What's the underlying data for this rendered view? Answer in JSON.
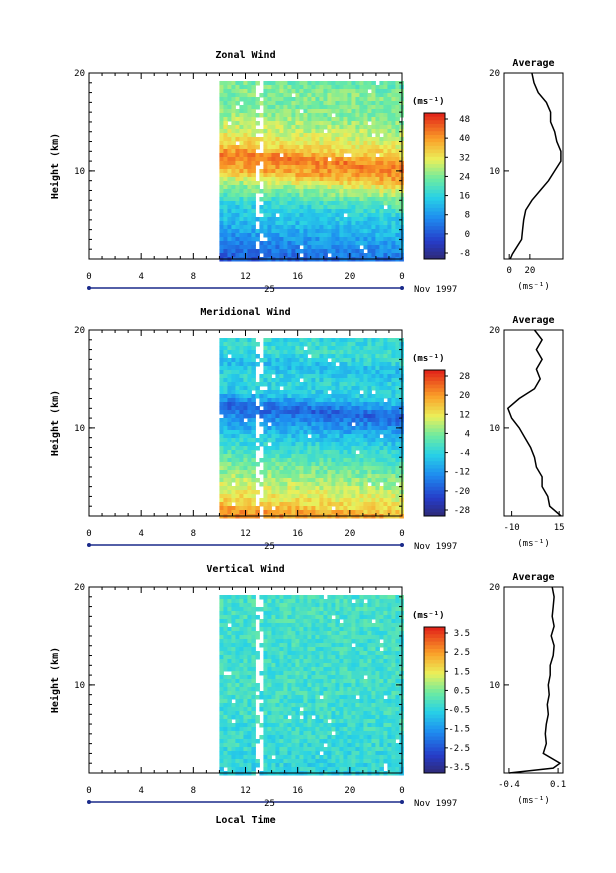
{
  "figure": {
    "date_label": "Nov 1997",
    "day_label": "25",
    "xlabel": "Local Time",
    "ylabel": "Height (km)",
    "avg_title": "Average",
    "unit": "(ms⁻¹)"
  },
  "chart_data": [
    {
      "type": "heatmap",
      "title": "Zonal Wind",
      "xlabel": "Local Time",
      "ylabel": "Height (km)",
      "xlim": [
        0,
        24
      ],
      "ylim": [
        1,
        20
      ],
      "xticks": [
        "0",
        "4",
        "8",
        "12",
        "16",
        "20",
        "0"
      ],
      "yticks": [
        10,
        20
      ],
      "data_start_hour": 10,
      "colorbar": {
        "unit": "(ms⁻¹)",
        "ticks": [
          "48",
          "40",
          "32",
          "24",
          "16",
          "8",
          "0",
          "-8"
        ],
        "min": -8,
        "max": 52
      },
      "field": {
        "profile": [
          [
            1,
            2
          ],
          [
            3,
            8
          ],
          [
            5,
            14
          ],
          [
            7,
            18
          ],
          [
            9,
            28
          ],
          [
            10.5,
            40
          ],
          [
            12,
            44
          ],
          [
            13,
            36
          ],
          [
            15,
            30
          ],
          [
            17,
            26
          ],
          [
            19,
            26
          ],
          [
            20,
            24
          ]
        ],
        "trend": 0.35
      },
      "average": {
        "xticks": [
          "0",
          "20"
        ],
        "xlim": [
          -5,
          52
        ],
        "height": [
          1,
          1.5,
          2,
          3,
          4,
          5,
          6,
          7,
          8,
          9,
          10,
          11,
          12,
          13,
          14,
          15,
          16,
          17,
          18,
          19,
          20
        ],
        "values": [
          1,
          3,
          6,
          12,
          13,
          14,
          16,
          22,
          30,
          38,
          44,
          50,
          50,
          46,
          44,
          40,
          40,
          36,
          28,
          24,
          22
        ]
      }
    },
    {
      "type": "heatmap",
      "title": "Meridional Wind",
      "xlabel": "Local Time",
      "ylabel": "Height (km)",
      "xlim": [
        0,
        24
      ],
      "ylim": [
        1,
        20
      ],
      "xticks": [
        "0",
        "4",
        "8",
        "12",
        "16",
        "20",
        "0"
      ],
      "yticks": [
        10,
        20
      ],
      "data_start_hour": 10,
      "colorbar": {
        "unit": "(ms⁻¹)",
        "ticks": [
          "28",
          "20",
          "12",
          "4",
          "-4",
          "-12",
          "-20",
          "-28"
        ],
        "min": -32,
        "max": 32
      },
      "field": {
        "profile": [
          [
            1,
            22
          ],
          [
            2,
            20
          ],
          [
            3,
            14
          ],
          [
            5,
            8
          ],
          [
            7,
            2
          ],
          [
            9,
            -4
          ],
          [
            11,
            -12
          ],
          [
            12.5,
            -20
          ],
          [
            14,
            -6
          ],
          [
            15.5,
            -4
          ],
          [
            17,
            -8
          ],
          [
            18.5,
            -2
          ],
          [
            20,
            -4
          ]
        ],
        "trend": 0.3
      },
      "average": {
        "xticks": [
          "-10",
          "15"
        ],
        "xlim": [
          -14,
          17
        ],
        "height": [
          1,
          2,
          3,
          4,
          5,
          6,
          7,
          8,
          9,
          10,
          11,
          12,
          13,
          14,
          15,
          16,
          17,
          18,
          19,
          20
        ],
        "values": [
          16,
          10,
          9,
          6,
          6,
          3,
          2,
          0,
          -3,
          -6,
          -10,
          -12,
          -6,
          2,
          5,
          3,
          6,
          3,
          6,
          2
        ]
      }
    },
    {
      "type": "heatmap",
      "title": "Vertical Wind",
      "xlabel": "Local Time",
      "ylabel": "Height (km)",
      "xlim": [
        0,
        24
      ],
      "ylim": [
        1,
        20
      ],
      "xticks": [
        "0",
        "4",
        "8",
        "12",
        "16",
        "20",
        "0"
      ],
      "yticks": [
        10,
        20
      ],
      "data_start_hour": 10,
      "colorbar": {
        "unit": "(ms⁻¹)",
        "ticks": [
          "3.5",
          "2.5",
          "1.5",
          "0.5",
          "-0.5",
          "-1.5",
          "-2.5",
          "-3.5"
        ],
        "min": -4,
        "max": 4
      },
      "field": {
        "profile": [
          [
            1,
            -0.6
          ],
          [
            3,
            -0.4
          ],
          [
            6,
            -0.3
          ],
          [
            10,
            -0.2
          ],
          [
            15,
            -0.2
          ],
          [
            20,
            -0.1
          ]
        ],
        "trend": 0.0
      },
      "average": {
        "xticks": [
          "-0.4",
          "0.1"
        ],
        "xlim": [
          -0.45,
          0.15
        ],
        "height": [
          1,
          1.5,
          2,
          3,
          4,
          5,
          6,
          7,
          8,
          9,
          10,
          11,
          12,
          13,
          14,
          15,
          16,
          17,
          18,
          19,
          20
        ],
        "values": [
          -0.4,
          0.05,
          0.12,
          -0.05,
          -0.02,
          -0.03,
          -0.02,
          0.0,
          -0.01,
          0.01,
          0.0,
          0.02,
          0.02,
          0.05,
          0.06,
          0.03,
          0.06,
          0.04,
          0.05,
          0.06,
          0.04
        ]
      }
    }
  ]
}
